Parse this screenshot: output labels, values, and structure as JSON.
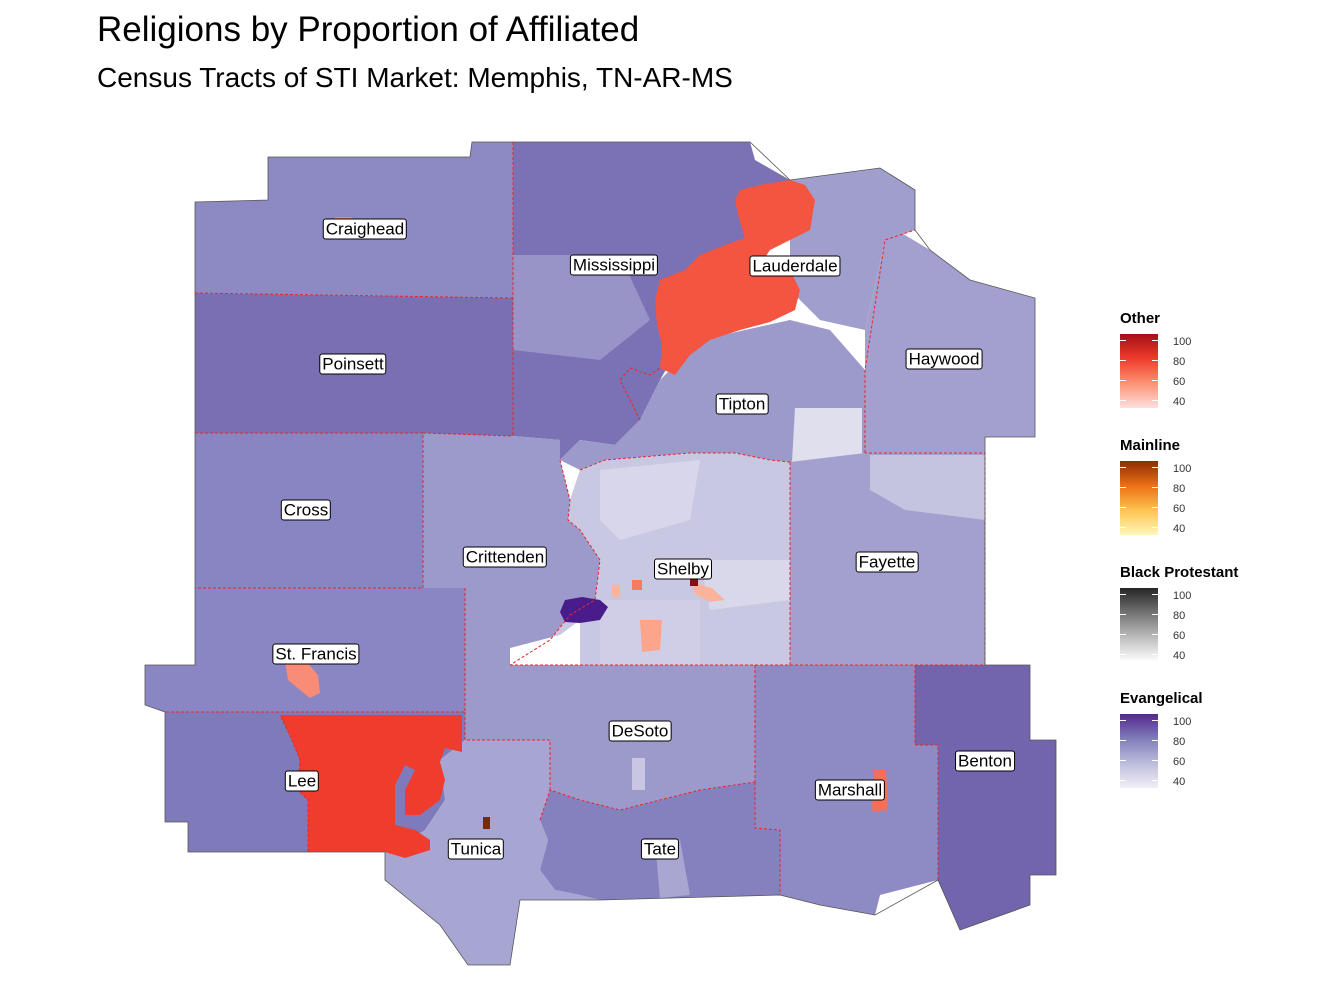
{
  "title": "Religions by Proportion of Affiliated",
  "subtitle": "Census Tracts of STI Market: Memphis, TN-AR-MS",
  "counties": [
    {
      "name": "Craighead"
    },
    {
      "name": "Mississippi"
    },
    {
      "name": "Lauderdale"
    },
    {
      "name": "Poinsett"
    },
    {
      "name": "Haywood"
    },
    {
      "name": "Tipton"
    },
    {
      "name": "Cross"
    },
    {
      "name": "Crittenden"
    },
    {
      "name": "Shelby"
    },
    {
      "name": "Fayette"
    },
    {
      "name": "St. Francis"
    },
    {
      "name": "DeSoto"
    },
    {
      "name": "Lee"
    },
    {
      "name": "Benton"
    },
    {
      "name": "Marshall"
    },
    {
      "name": "Tunica"
    },
    {
      "name": "Tate"
    }
  ],
  "legends": [
    {
      "title": "Other",
      "ticks": [
        "100",
        "80",
        "60",
        "40"
      ],
      "low": "#fde0dd",
      "high": "#a50f15"
    },
    {
      "title": "Mainline",
      "ticks": [
        "100",
        "80",
        "60",
        "40"
      ],
      "low": "#fff7bc",
      "high": "#8c2d04"
    },
    {
      "title": "Black Protestant",
      "ticks": [
        "100",
        "80",
        "60",
        "40"
      ],
      "low": "#ffffff",
      "high": "#252525"
    },
    {
      "title": "Evangelical",
      "ticks": [
        "100",
        "80",
        "60",
        "40"
      ],
      "low": "#f2f0f7",
      "high": "#54278f"
    }
  ]
}
